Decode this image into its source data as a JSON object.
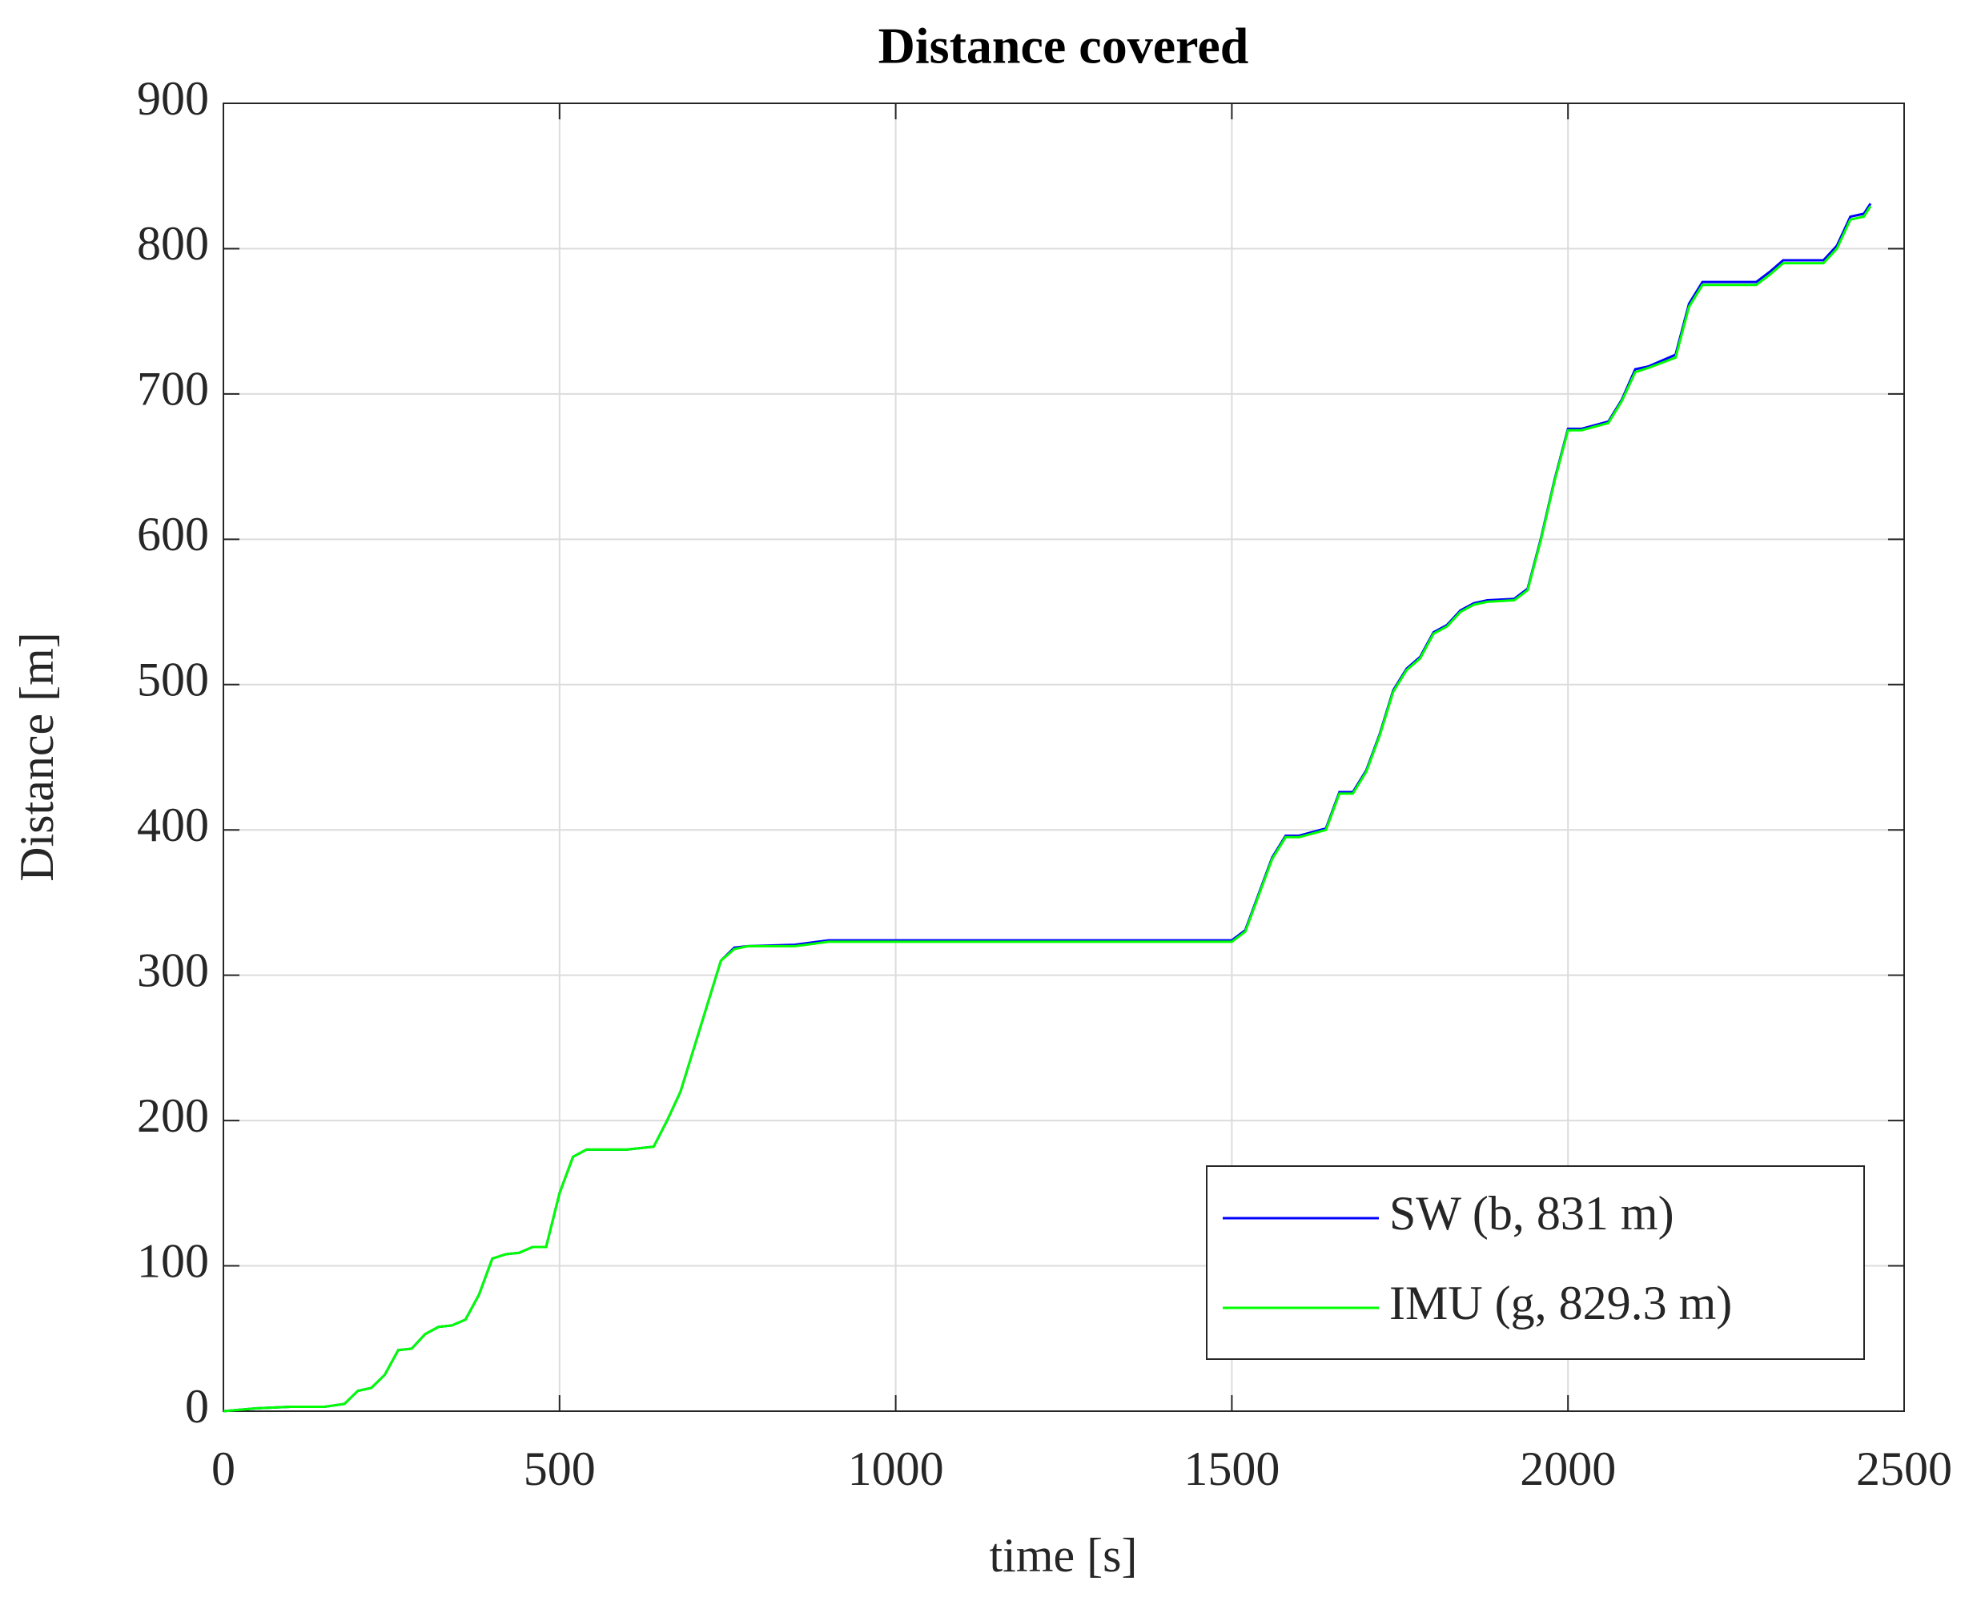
{
  "chart_data": {
    "type": "line",
    "title": "Distance covered",
    "xlabel": "time [s]",
    "ylabel": "Distance [m]",
    "x": [
      0,
      50,
      100,
      150,
      180,
      200,
      220,
      240,
      260,
      280,
      300,
      320,
      340,
      360,
      380,
      400,
      420,
      440,
      460,
      480,
      500,
      520,
      540,
      560,
      600,
      640,
      660,
      680,
      700,
      720,
      740,
      760,
      780,
      850,
      900,
      1000,
      1200,
      1500,
      1520,
      1540,
      1560,
      1580,
      1600,
      1640,
      1660,
      1680,
      1700,
      1720,
      1740,
      1760,
      1780,
      1800,
      1820,
      1840,
      1860,
      1880,
      1920,
      1940,
      1960,
      1980,
      2000,
      2020,
      2060,
      2080,
      2100,
      2120,
      2160,
      2180,
      2200,
      2280,
      2300,
      2320,
      2380,
      2400,
      2420,
      2440,
      2450
    ],
    "series": [
      {
        "name": "SW (b, 831 m)",
        "color": "#0000ff",
        "values": [
          0,
          2,
          3,
          3,
          5,
          14,
          16,
          25,
          42,
          43,
          53,
          58,
          59,
          63,
          80,
          105,
          108,
          109,
          113,
          113,
          150,
          175,
          180,
          180,
          180,
          182,
          200,
          220,
          250,
          280,
          310,
          319,
          320,
          321,
          324,
          324,
          324,
          324,
          331,
          356,
          381,
          396,
          396,
          401,
          426,
          426,
          441,
          466,
          496,
          511,
          519,
          536,
          541,
          551,
          556,
          558,
          559,
          566,
          601,
          641,
          676,
          676,
          681,
          696,
          717,
          719,
          727,
          762,
          777,
          777,
          784,
          792,
          792,
          802,
          822,
          824,
          831
        ]
      },
      {
        "name": "IMU (g, 829.3 m)",
        "color": "#00ff00",
        "values": [
          0,
          2,
          3,
          3,
          5,
          14,
          16,
          25,
          42,
          43,
          53,
          58,
          59,
          63,
          80,
          105,
          108,
          109,
          113,
          113,
          150,
          175,
          180,
          180,
          180,
          182,
          200,
          220,
          250,
          280,
          310,
          318,
          320,
          320,
          323,
          323,
          323,
          323,
          330,
          355,
          380,
          395,
          395,
          400,
          425,
          425,
          440,
          465,
          495,
          510,
          518,
          535,
          540,
          550,
          555,
          557,
          558,
          565,
          600,
          640,
          675,
          675,
          680,
          695,
          715,
          718,
          725,
          760,
          775,
          775,
          782,
          790,
          790,
          800,
          820,
          822,
          829.3
        ]
      }
    ],
    "xlim": [
      0,
      2500
    ],
    "xticks": [
      0,
      500,
      1000,
      1500,
      2000,
      2500
    ],
    "ylim": [
      0,
      900
    ],
    "yticks": [
      0,
      100,
      200,
      300,
      400,
      500,
      600,
      700,
      800,
      900
    ],
    "grid": true,
    "legend": "lower right"
  }
}
